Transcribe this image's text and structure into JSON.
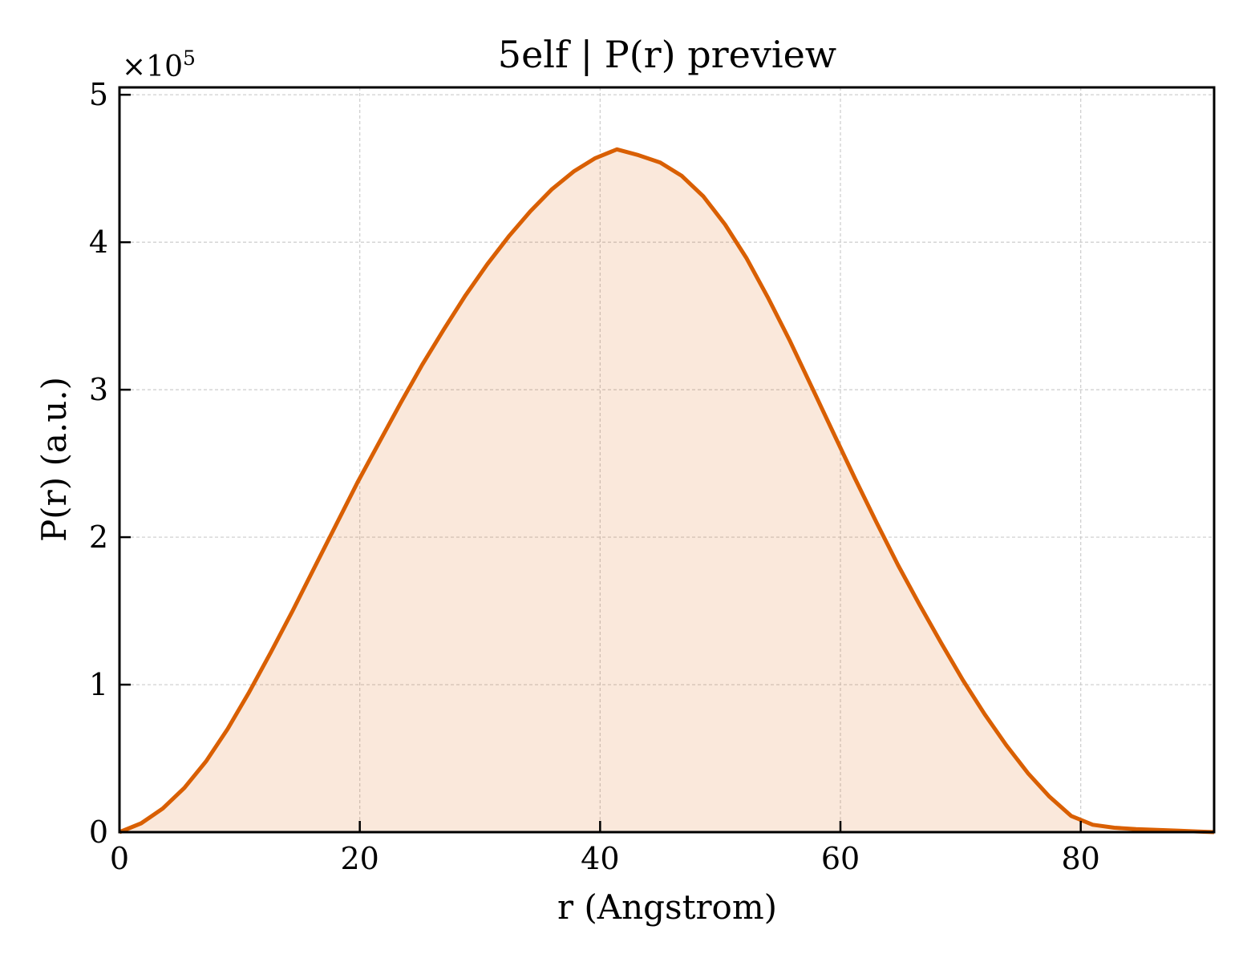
{
  "chart_data": {
    "type": "area",
    "title": "5elf | P(r) preview",
    "xlabel": "r (Angstrom)",
    "ylabel": "P(r) (a.u.)",
    "y_multiplier_prefix": "×10",
    "y_multiplier_exponent": "5",
    "xlim": [
      0,
      91.1
    ],
    "ylim": [
      0,
      5.05
    ],
    "x_ticks": [
      0,
      20,
      40,
      60,
      80
    ],
    "y_ticks": [
      0,
      1,
      2,
      3,
      4,
      5
    ],
    "grid": true,
    "legend": "none",
    "series": [
      {
        "color": "#d95f02",
        "fill_color": "#d95f02",
        "fill_opacity": 0.14,
        "x": [
          0,
          1.8,
          3.6,
          5.4,
          7.2,
          9.0,
          10.8,
          12.6,
          14.4,
          16.2,
          18.0,
          19.8,
          21.6,
          23.4,
          25.2,
          27.0,
          28.8,
          30.6,
          32.4,
          34.2,
          36.0,
          37.8,
          39.6,
          41.4,
          43.2,
          45.0,
          46.8,
          48.6,
          50.4,
          52.2,
          54.0,
          55.8,
          57.6,
          59.4,
          61.2,
          63.0,
          64.8,
          66.6,
          68.4,
          70.2,
          72.0,
          73.8,
          75.6,
          77.4,
          79.2,
          81.0,
          82.8,
          84.6,
          86.4,
          88.2,
          90.0,
          91.1
        ],
        "y": [
          0.0,
          0.06,
          0.16,
          0.3,
          0.48,
          0.7,
          0.95,
          1.22,
          1.5,
          1.79,
          2.08,
          2.37,
          2.64,
          2.91,
          3.17,
          3.41,
          3.64,
          3.85,
          4.04,
          4.21,
          4.36,
          4.48,
          4.57,
          4.63,
          4.59,
          4.54,
          4.45,
          4.31,
          4.12,
          3.89,
          3.62,
          3.33,
          3.02,
          2.71,
          2.4,
          2.1,
          1.81,
          1.54,
          1.28,
          1.03,
          0.8,
          0.59,
          0.4,
          0.24,
          0.11,
          0.05,
          0.03,
          0.02,
          0.015,
          0.01,
          0.003,
          0.0
        ]
      }
    ]
  }
}
